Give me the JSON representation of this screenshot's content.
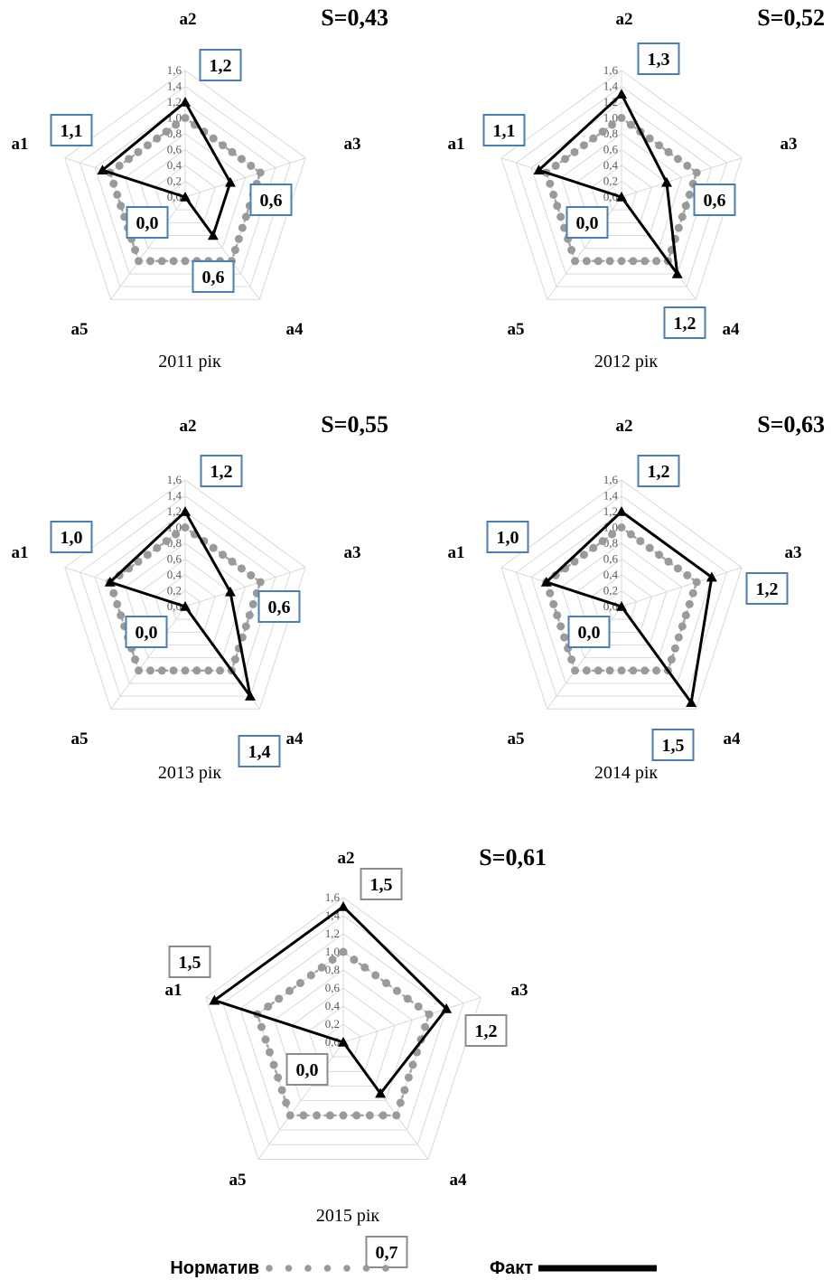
{
  "legend": {
    "normative_label": "Норматив",
    "fact_label": "Факт"
  },
  "chart_data": [
    {
      "type": "radar",
      "axes": [
        "a1",
        "a2",
        "a3",
        "a4",
        "a5"
      ],
      "r_ticks": [
        "0,0",
        "0,2",
        "0,4",
        "0,6",
        "0,8",
        "1,0",
        "1,2",
        "1,4",
        "1,6"
      ],
      "rlim": [
        0,
        1.6
      ],
      "series": [
        {
          "name": "Норматив",
          "values": [
            1.0,
            1.0,
            1.0,
            1.0,
            1.0
          ]
        },
        {
          "name": "Факт",
          "values": [
            1.1,
            1.2,
            0.6,
            0.6,
            0.0
          ]
        }
      ],
      "value_labels": {
        "a1": "1,1",
        "a2": "1,2",
        "a3": "0,6",
        "a4": "0,6",
        "a5": "0,0"
      },
      "s_label": "S=0,43",
      "caption": "2011 рік"
    },
    {
      "type": "radar",
      "axes": [
        "a1",
        "a2",
        "a3",
        "a4",
        "a5"
      ],
      "r_ticks": [
        "0,0",
        "0,2",
        "0,4",
        "0,6",
        "0,8",
        "1,0",
        "1,2",
        "1,4",
        "1,6"
      ],
      "rlim": [
        0,
        1.6
      ],
      "series": [
        {
          "name": "Норматив",
          "values": [
            1.0,
            1.0,
            1.0,
            1.0,
            1.0
          ]
        },
        {
          "name": "Факт",
          "values": [
            1.1,
            1.3,
            0.6,
            1.2,
            0.0
          ]
        }
      ],
      "value_labels": {
        "a1": "1,1",
        "a2": "1,3",
        "a3": "0,6",
        "a4": "1,2",
        "a5": "0,0"
      },
      "s_label": "S=0,52",
      "caption": "2012 рік"
    },
    {
      "type": "radar",
      "axes": [
        "a1",
        "a2",
        "a3",
        "a4",
        "a5"
      ],
      "r_ticks": [
        "0,0",
        "0,2",
        "0,4",
        "0,6",
        "0,8",
        "1,0",
        "1,2",
        "1,4",
        "1,6"
      ],
      "rlim": [
        0,
        1.6
      ],
      "series": [
        {
          "name": "Норматив",
          "values": [
            1.0,
            1.0,
            1.0,
            1.0,
            1.0
          ]
        },
        {
          "name": "Факт",
          "values": [
            1.0,
            1.2,
            0.6,
            1.4,
            0.0
          ]
        }
      ],
      "value_labels": {
        "a1": "1,0",
        "a2": "1,2",
        "a3": "0,6",
        "a4": "1,4",
        "a5": "0,0"
      },
      "s_label": "S=0,55",
      "caption": "2013 рік"
    },
    {
      "type": "radar",
      "axes": [
        "a1",
        "a2",
        "a3",
        "a4",
        "a5"
      ],
      "r_ticks": [
        "0,0",
        "0,2",
        "0,4",
        "0,6",
        "0,8",
        "1,0",
        "1,2",
        "1,4",
        "1,6"
      ],
      "rlim": [
        0,
        1.6
      ],
      "series": [
        {
          "name": "Норматив",
          "values": [
            1.0,
            1.0,
            1.0,
            1.0,
            1.0
          ]
        },
        {
          "name": "Факт",
          "values": [
            1.0,
            1.2,
            1.2,
            1.5,
            0.0
          ]
        }
      ],
      "value_labels": {
        "a1": "1,0",
        "a2": "1,2",
        "a3": "1,2",
        "a4": "1,5",
        "a5": "0,0"
      },
      "s_label": "S=0,63",
      "caption": "2014 рік"
    },
    {
      "type": "radar",
      "axes": [
        "a1",
        "a2",
        "a3",
        "a4",
        "a5"
      ],
      "r_ticks": [
        "0,0",
        "0,2",
        "0,4",
        "0,6",
        "0,8",
        "1,0",
        "1,2",
        "1,4",
        "1,6"
      ],
      "rlim": [
        0,
        1.6
      ],
      "series": [
        {
          "name": "Норматив",
          "values": [
            1.0,
            1.0,
            1.0,
            1.0,
            1.0
          ]
        },
        {
          "name": "Факт",
          "values": [
            1.5,
            1.5,
            1.2,
            0.7,
            0.0
          ]
        }
      ],
      "value_labels": {
        "a1": "1,5",
        "a2": "1,5",
        "a3": "1,2",
        "a4": "0,7",
        "a5": "0,0"
      },
      "s_label": "S=0,61",
      "caption": "2015  рік"
    }
  ]
}
